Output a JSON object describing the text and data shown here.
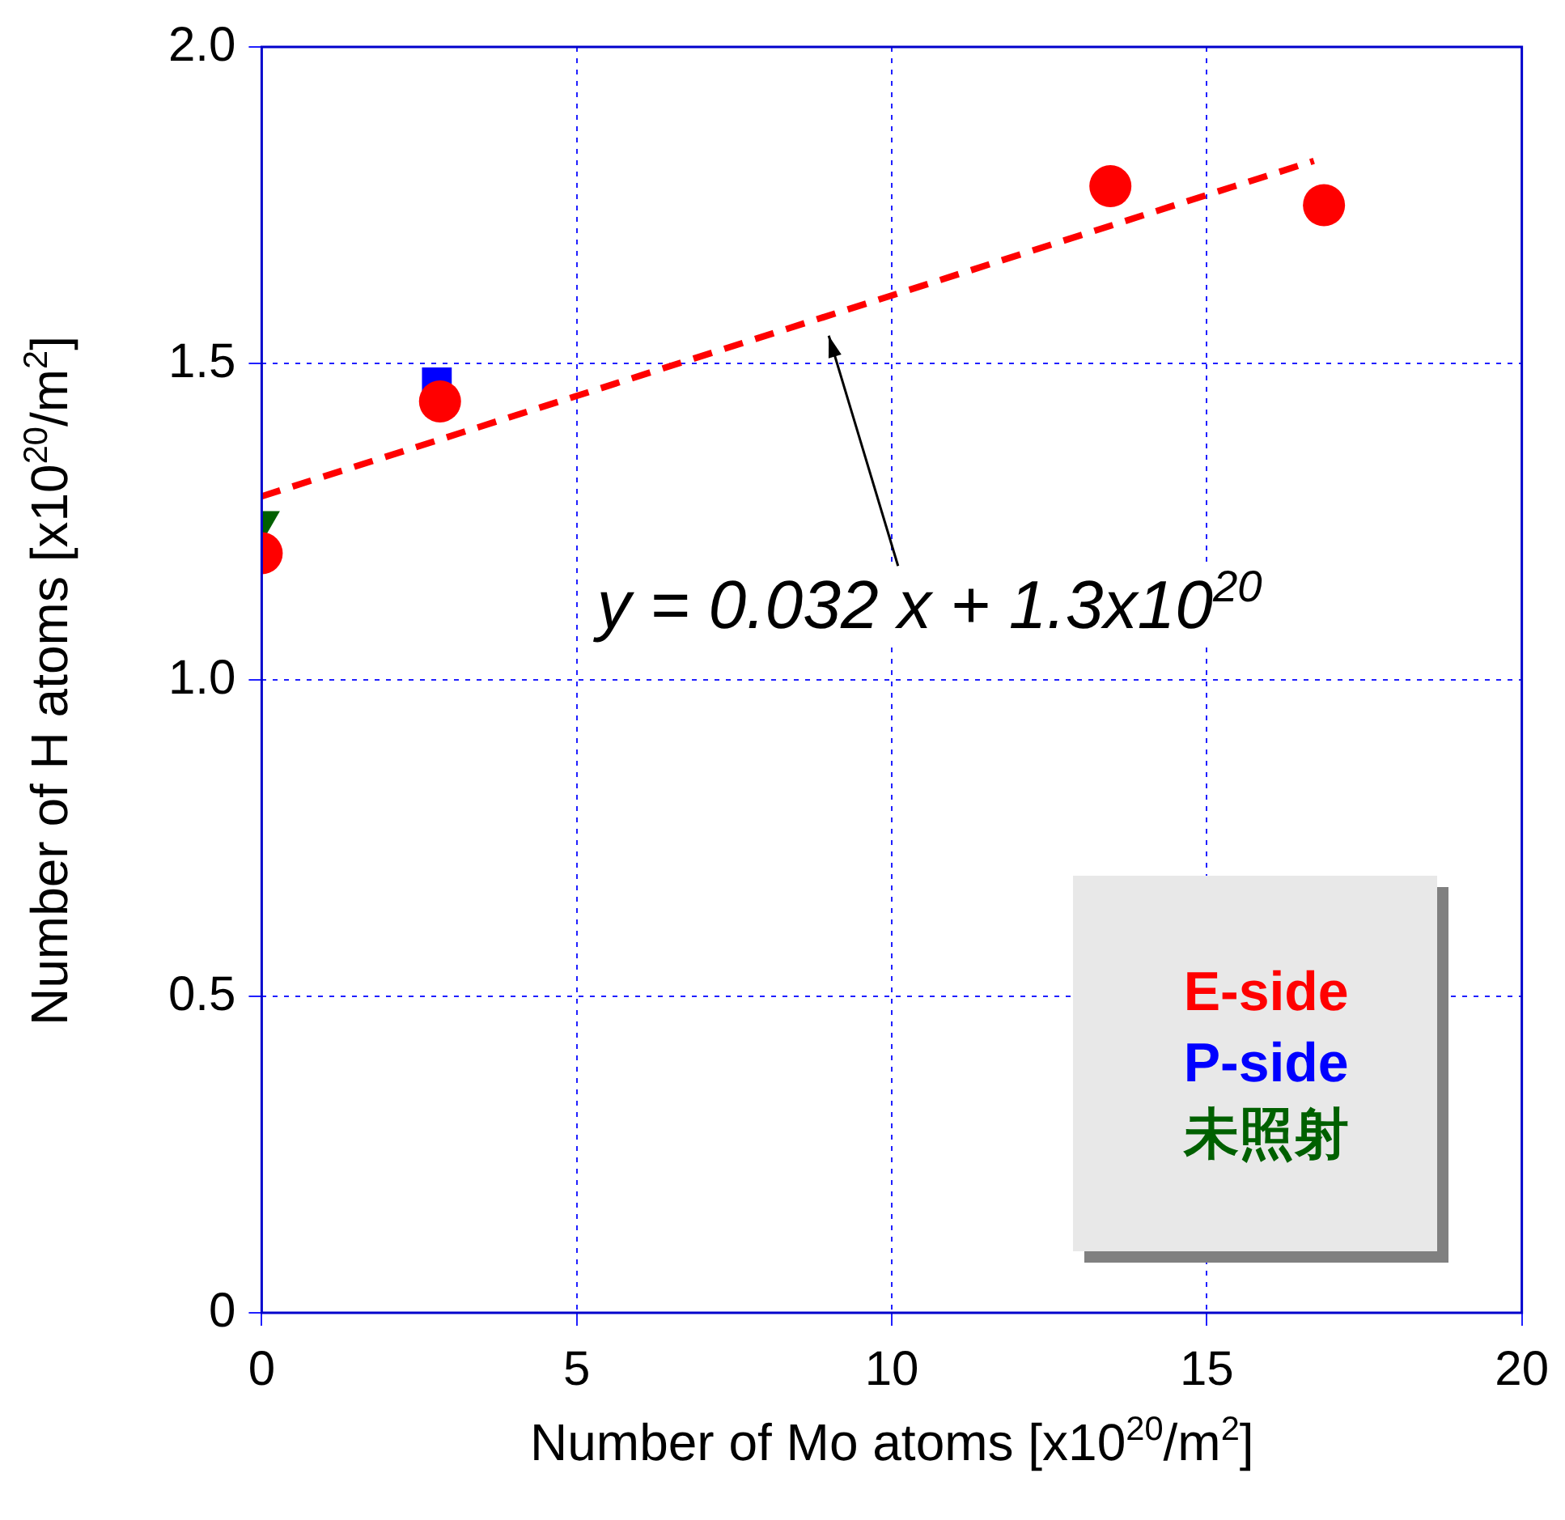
{
  "chart_data": {
    "type": "scatter",
    "xlabel": "Number of Mo atoms [x10$^{20}$/m$^{2}$]",
    "ylabel": "Number of H atoms [x10$^{20}$/m$^{2}$]",
    "xlim": [
      0,
      20
    ],
    "xticks": [
      0,
      5,
      10,
      15,
      20
    ],
    "ylim": [
      0,
      2
    ],
    "yticks": [
      0,
      0.5,
      {
        "value": 1,
        "label": "1.0"
      },
      1.5,
      {
        "value": 2,
        "label": "2.0"
      }
    ],
    "grid": true,
    "legend": "bottom right",
    "series": [
      {
        "name": "E-side",
        "color": "#ff0000",
        "marker": "circle",
        "x": [
          0,
          2.83,
          13.47,
          16.86
        ],
        "values": [
          1.2,
          1.44,
          1.78,
          1.75
        ]
      },
      {
        "name": "P-side",
        "color": "#0000ff",
        "marker": "square",
        "x": [
          2.78
        ],
        "values": [
          1.47
        ]
      },
      {
        "name": "未照射",
        "color": "#006000",
        "marker": "triangle",
        "x": [
          0
        ],
        "values": [
          1.25
        ]
      },
      {
        "type": "line",
        "color": "#ff0000",
        "marker": "none",
        "line_style": "dashed",
        "x": [
          0,
          16.7
        ],
        "values": [
          1.29,
          1.82
        ]
      }
    ],
    "annotations": [
      "y = 0.032 x + 1.3x10$^{20}$"
    ]
  }
}
